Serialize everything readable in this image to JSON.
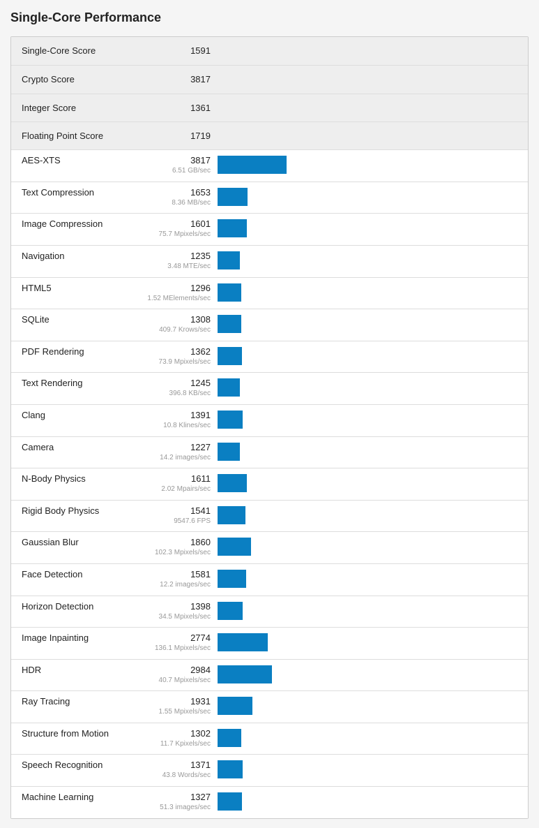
{
  "title": "Single-Core Performance",
  "summary": [
    {
      "name": "Single-Core Score",
      "score": 1591
    },
    {
      "name": "Crypto Score",
      "score": 3817
    },
    {
      "name": "Integer Score",
      "score": 1361
    },
    {
      "name": "Floating Point Score",
      "score": 1719
    }
  ],
  "benchmarks": [
    {
      "name": "AES-XTS",
      "score": 3817,
      "rate": "6.51 GB/sec"
    },
    {
      "name": "Text Compression",
      "score": 1653,
      "rate": "8.36 MB/sec"
    },
    {
      "name": "Image Compression",
      "score": 1601,
      "rate": "75.7 Mpixels/sec"
    },
    {
      "name": "Navigation",
      "score": 1235,
      "rate": "3.48 MTE/sec"
    },
    {
      "name": "HTML5",
      "score": 1296,
      "rate": "1.52 MElements/sec"
    },
    {
      "name": "SQLite",
      "score": 1308,
      "rate": "409.7 Krows/sec"
    },
    {
      "name": "PDF Rendering",
      "score": 1362,
      "rate": "73.9 Mpixels/sec"
    },
    {
      "name": "Text Rendering",
      "score": 1245,
      "rate": "396.8 KB/sec"
    },
    {
      "name": "Clang",
      "score": 1391,
      "rate": "10.8 Klines/sec"
    },
    {
      "name": "Camera",
      "score": 1227,
      "rate": "14.2 images/sec"
    },
    {
      "name": "N-Body Physics",
      "score": 1611,
      "rate": "2.02 Mpairs/sec"
    },
    {
      "name": "Rigid Body Physics",
      "score": 1541,
      "rate": "9547.6 FPS"
    },
    {
      "name": "Gaussian Blur",
      "score": 1860,
      "rate": "102.3 Mpixels/sec"
    },
    {
      "name": "Face Detection",
      "score": 1581,
      "rate": "12.2 images/sec"
    },
    {
      "name": "Horizon Detection",
      "score": 1398,
      "rate": "34.5 Mpixels/sec"
    },
    {
      "name": "Image Inpainting",
      "score": 2774,
      "rate": "136.1 Mpixels/sec"
    },
    {
      "name": "HDR",
      "score": 2984,
      "rate": "40.7 Mpixels/sec"
    },
    {
      "name": "Ray Tracing",
      "score": 1931,
      "rate": "1.55 Mpixels/sec"
    },
    {
      "name": "Structure from Motion",
      "score": 1302,
      "rate": "11.7 Kpixels/sec"
    },
    {
      "name": "Speech Recognition",
      "score": 1371,
      "rate": "43.8 Words/sec"
    },
    {
      "name": "Machine Learning",
      "score": 1327,
      "rate": "51.3 images/sec"
    }
  ]
}
